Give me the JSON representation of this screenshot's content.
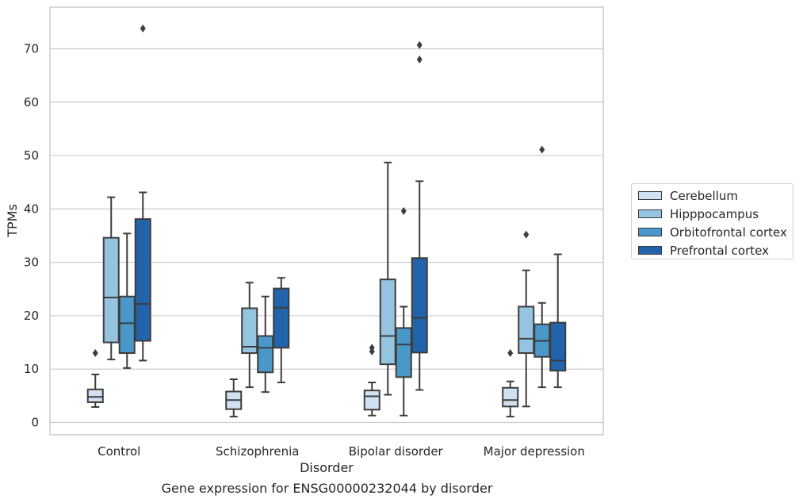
{
  "chart_data": {
    "type": "box",
    "caption": "Gene expression for ENSG00000232044 by disorder",
    "xlabel": "Disorder",
    "ylabel": "TPMs",
    "ylim": [
      -2.3,
      77.8
    ],
    "yticks": [
      0,
      10,
      20,
      30,
      40,
      50,
      60,
      70
    ],
    "grid": "horizontal",
    "legend_placement": "right",
    "categories": [
      "Control",
      "Schizophrenia",
      "Bipolar disorder",
      "Major depression"
    ],
    "series": [
      {
        "name": "Cerebellum",
        "color": "#d0e1f2",
        "boxes": [
          {
            "whislo": 2.9,
            "q1": 3.8,
            "med": 4.8,
            "q3": 6.2,
            "whishi": 9.0,
            "fliers": [
              13.0
            ]
          },
          {
            "whislo": 1.1,
            "q1": 2.5,
            "med": 4.2,
            "q3": 5.8,
            "whishi": 8.1,
            "fliers": []
          },
          {
            "whislo": 1.3,
            "q1": 2.4,
            "med": 4.9,
            "q3": 6.0,
            "whishi": 7.5,
            "fliers": [
              13.3,
              14.0
            ]
          },
          {
            "whislo": 1.1,
            "q1": 3.0,
            "med": 4.2,
            "q3": 6.5,
            "whishi": 7.7,
            "fliers": [
              13.0
            ]
          }
        ]
      },
      {
        "name": "Hipppocampus",
        "color": "#94c4df",
        "boxes": [
          {
            "whislo": 11.8,
            "q1": 15.0,
            "med": 23.4,
            "q3": 34.6,
            "whishi": 42.2,
            "fliers": []
          },
          {
            "whislo": 6.6,
            "q1": 13.0,
            "med": 14.2,
            "q3": 21.4,
            "whishi": 26.2,
            "fliers": []
          },
          {
            "whislo": 5.2,
            "q1": 10.9,
            "med": 16.2,
            "q3": 26.8,
            "whishi": 48.7,
            "fliers": []
          },
          {
            "whislo": 3.0,
            "q1": 13.0,
            "med": 15.7,
            "q3": 21.7,
            "whishi": 28.5,
            "fliers": [
              35.2
            ]
          }
        ]
      },
      {
        "name": "Orbitofrontal cortex",
        "color": "#4a98c9",
        "boxes": [
          {
            "whislo": 10.2,
            "q1": 13.0,
            "med": 18.6,
            "q3": 23.6,
            "whishi": 35.4,
            "fliers": []
          },
          {
            "whislo": 5.7,
            "q1": 9.4,
            "med": 14.0,
            "q3": 16.2,
            "whishi": 23.6,
            "fliers": []
          },
          {
            "whislo": 1.3,
            "q1": 8.5,
            "med": 14.6,
            "q3": 17.7,
            "whishi": 21.7,
            "fliers": [
              39.6
            ]
          },
          {
            "whislo": 6.6,
            "q1": 12.3,
            "med": 15.3,
            "q3": 18.4,
            "whishi": 22.4,
            "fliers": [
              51.1
            ]
          }
        ]
      },
      {
        "name": "Prefrontal cortex",
        "color": "#2164ab",
        "boxes": [
          {
            "whislo": 11.6,
            "q1": 15.3,
            "med": 22.2,
            "q3": 38.1,
            "whishi": 43.1,
            "fliers": [
              73.8
            ]
          },
          {
            "whislo": 7.5,
            "q1": 14.0,
            "med": 21.5,
            "q3": 25.1,
            "whishi": 27.1,
            "fliers": []
          },
          {
            "whislo": 6.1,
            "q1": 13.1,
            "med": 19.6,
            "q3": 30.8,
            "whishi": 45.2,
            "fliers": [
              68.0,
              70.7
            ]
          },
          {
            "whislo": 6.6,
            "q1": 9.7,
            "med": 11.6,
            "q3": 18.7,
            "whishi": 31.5,
            "fliers": []
          }
        ]
      }
    ]
  }
}
